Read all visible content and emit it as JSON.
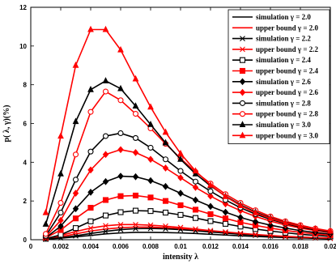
{
  "chart_data": {
    "type": "line",
    "xlabel": "intensity λ",
    "ylabel": "p( λ, γ)(%)",
    "xlim": [
      0,
      0.02
    ],
    "ylim": [
      0,
      12
    ],
    "x_ticks": [
      "0",
      "0.002",
      "0.004",
      "0.006",
      "0.008",
      "0.01",
      "0.012",
      "0.014",
      "0.016",
      "0.018",
      "0.02"
    ],
    "y_ticks": [
      "0",
      "2",
      "4",
      "6",
      "8",
      "10",
      "12"
    ],
    "grid": false,
    "legend_position": "top-right",
    "x": [
      0.001,
      0.002,
      0.003,
      0.004,
      0.005,
      0.006,
      0.007,
      0.008,
      0.009,
      0.01,
      0.011,
      0.012,
      0.013,
      0.014,
      0.015,
      0.016,
      0.017,
      0.018,
      0.019,
      0.02
    ],
    "series": [
      {
        "name": "simulation γ = 2.0",
        "color": "#000000",
        "marker": "none",
        "values": [
          0.03,
          0.08,
          0.15,
          0.22,
          0.3,
          0.35,
          0.38,
          0.38,
          0.37,
          0.35,
          0.32,
          0.28,
          0.24,
          0.2,
          0.17,
          0.14,
          0.11,
          0.09,
          0.07,
          0.05
        ]
      },
      {
        "name": "upper bound γ = 2.0",
        "color": "#ff0000",
        "marker": "none",
        "values": [
          0.05,
          0.15,
          0.3,
          0.45,
          0.55,
          0.62,
          0.65,
          0.65,
          0.62,
          0.57,
          0.5,
          0.43,
          0.36,
          0.3,
          0.24,
          0.19,
          0.15,
          0.12,
          0.09,
          0.07
        ]
      },
      {
        "name": "simulation γ = 2.2",
        "color": "#000000",
        "marker": "x",
        "values": [
          0.03,
          0.1,
          0.2,
          0.32,
          0.43,
          0.52,
          0.57,
          0.58,
          0.56,
          0.52,
          0.46,
          0.4,
          0.34,
          0.28,
          0.23,
          0.19,
          0.15,
          0.12,
          0.09,
          0.07
        ]
      },
      {
        "name": "upper bound γ = 2.2",
        "color": "#ff0000",
        "marker": "x",
        "values": [
          0.06,
          0.22,
          0.42,
          0.6,
          0.72,
          0.78,
          0.78,
          0.75,
          0.7,
          0.63,
          0.55,
          0.47,
          0.4,
          0.33,
          0.27,
          0.22,
          0.17,
          0.14,
          0.11,
          0.08
        ]
      },
      {
        "name": "simulation γ = 2.4",
        "color": "#000000",
        "marker": "square",
        "values": [
          0.05,
          0.25,
          0.6,
          0.95,
          1.25,
          1.42,
          1.5,
          1.48,
          1.4,
          1.28,
          1.12,
          0.96,
          0.82,
          0.68,
          0.55,
          0.45,
          0.36,
          0.28,
          0.22,
          0.17
        ]
      },
      {
        "name": "upper bound γ = 2.4",
        "color": "#ff0000",
        "marker": "square",
        "values": [
          0.1,
          0.5,
          1.1,
          1.65,
          2.05,
          2.25,
          2.28,
          2.18,
          2.0,
          1.78,
          1.55,
          1.32,
          1.1,
          0.9,
          0.74,
          0.6,
          0.48,
          0.38,
          0.3,
          0.23
        ]
      },
      {
        "name": "simulation γ = 2.6",
        "color": "#000000",
        "marker": "diamond",
        "values": [
          0.1,
          0.7,
          1.6,
          2.45,
          3.0,
          3.28,
          3.25,
          3.05,
          2.75,
          2.4,
          2.05,
          1.72,
          1.42,
          1.15,
          0.93,
          0.75,
          0.6,
          0.47,
          0.37,
          0.29
        ]
      },
      {
        "name": "upper bound γ = 2.6",
        "color": "#ff0000",
        "marker": "diamond",
        "values": [
          0.15,
          1.0,
          2.4,
          3.6,
          4.4,
          4.65,
          4.5,
          4.15,
          3.7,
          3.2,
          2.7,
          2.25,
          1.85,
          1.5,
          1.2,
          0.96,
          0.76,
          0.6,
          0.47,
          0.37
        ]
      },
      {
        "name": "simulation γ = 2.8",
        "color": "#000000",
        "marker": "circle",
        "values": [
          0.2,
          1.4,
          3.1,
          4.55,
          5.35,
          5.5,
          5.25,
          4.75,
          4.15,
          3.55,
          3.0,
          2.5,
          2.05,
          1.65,
          1.32,
          1.05,
          0.83,
          0.65,
          0.51,
          0.4
        ]
      },
      {
        "name": "upper bound γ = 2.8",
        "color": "#ff0000",
        "marker": "circle",
        "values": [
          0.3,
          1.9,
          4.4,
          6.6,
          7.65,
          7.2,
          6.5,
          5.75,
          4.95,
          4.2,
          3.5,
          2.9,
          2.35,
          1.9,
          1.52,
          1.2,
          0.95,
          0.75,
          0.58,
          0.45
        ]
      },
      {
        "name": "simulation γ = 3.0",
        "color": "#000000",
        "marker": "triangle",
        "values": [
          0.8,
          3.4,
          6.1,
          7.75,
          8.2,
          7.8,
          6.9,
          5.95,
          5.0,
          4.15,
          3.4,
          2.78,
          2.25,
          1.8,
          1.43,
          1.13,
          0.89,
          0.7,
          0.55,
          0.43
        ]
      },
      {
        "name": "upper bound γ = 3.0",
        "color": "#ff0000",
        "marker": "triangle",
        "values": [
          1.4,
          5.35,
          9.0,
          10.85,
          10.85,
          9.8,
          8.3,
          6.85,
          5.55,
          4.45,
          3.55,
          2.82,
          2.23,
          1.76,
          1.39,
          1.1,
          0.87,
          0.69,
          0.55,
          0.44
        ]
      }
    ]
  }
}
